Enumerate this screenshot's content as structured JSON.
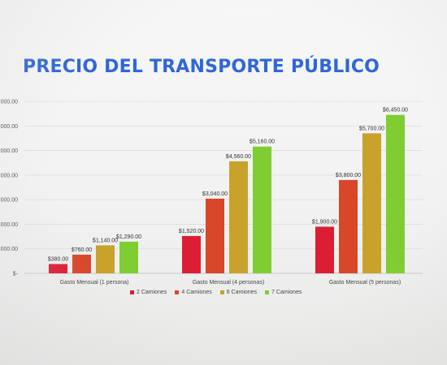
{
  "page": {
    "title": "PRECIO DEL TRANSPORTE PÚBLICO"
  },
  "chart_data": {
    "type": "bar",
    "title": "PRECIO DEL TRANSPORTE PÚBLICO",
    "categories": [
      "Gasto Mensual (1 persona)",
      "Gasto Mensual (4 personas)",
      "Gasto Mensual (5 personas)"
    ],
    "series": [
      {
        "name": "2 Camiones",
        "color": "#dc1e35",
        "values": [
          380,
          1520,
          1900
        ],
        "labels": [
          "$380.00",
          "$1,520.00",
          "$1,900.00"
        ]
      },
      {
        "name": "4 Camiones",
        "color": "#d8472a",
        "values": [
          760,
          3040,
          3800
        ],
        "labels": [
          "$760.00",
          "$3,040.00",
          "$3,800.00"
        ]
      },
      {
        "name": "6 Camiones",
        "color": "#c9a22c",
        "values": [
          1140,
          4560,
          5700
        ],
        "labels": [
          "$1,140.00",
          "$4,560.00",
          "$5,700.00"
        ]
      },
      {
        "name": "7 Camiones",
        "color": "#7fcd33",
        "values": [
          1290,
          5160,
          6450
        ],
        "labels": [
          "$1,290.00",
          "$5,160.00",
          "$6,450.00"
        ]
      }
    ],
    "y_ticks": [
      {
        "value": 0,
        "label": "$-"
      },
      {
        "value": 1000,
        "label": "1,000.00"
      },
      {
        "value": 2000,
        "label": "2,000.00"
      },
      {
        "value": 3000,
        "label": "3,000.00"
      },
      {
        "value": 4000,
        "label": "4,000.00"
      },
      {
        "value": 5000,
        "label": "5,000.00"
      },
      {
        "value": 6000,
        "label": "6,000.00"
      },
      {
        "value": 7000,
        "label": "7,000.00"
      }
    ],
    "ylim": [
      0,
      7000
    ],
    "grid": true,
    "legend_position": "bottom"
  }
}
